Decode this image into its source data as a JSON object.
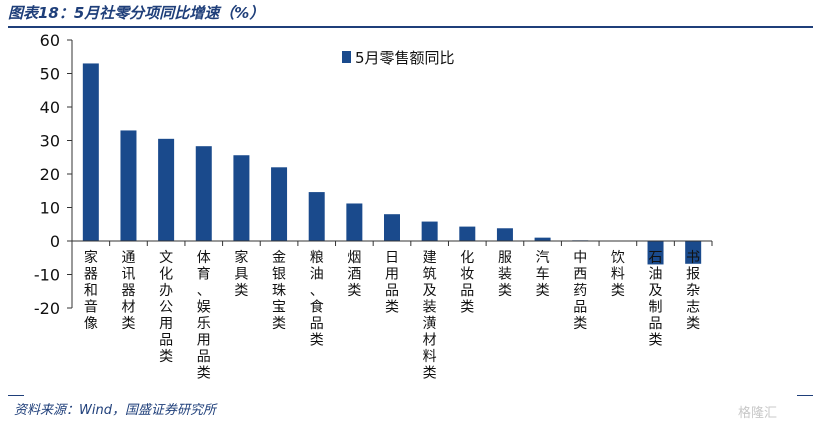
{
  "figure": {
    "title": "图表18：5月社零分项同比增速（%）",
    "source": "资料来源：Wind，国盛证券研究所",
    "watermark": "格隆汇"
  },
  "colors": {
    "bar": "#1a4a8c",
    "title": "#1f3f7a",
    "axis": "#333333"
  },
  "chart_data": {
    "type": "bar",
    "title": "",
    "xlabel": "",
    "ylabel": "",
    "ylim": [
      -20,
      60
    ],
    "yticks": [
      -20,
      -10,
      0,
      10,
      20,
      30,
      40,
      50,
      60
    ],
    "grid": false,
    "legend_position": "top-center",
    "categories": [
      "家器和音像",
      "通讯器材类",
      "文化办公用品类",
      "体育、娱乐用品类",
      "家具类",
      "金银珠宝类",
      "粮油、食品类",
      "烟酒类",
      "日用品类",
      "建筑及装潢材料类",
      "化妆品类",
      "服装类",
      "汽车类",
      "中西药品类",
      "饮料类",
      "石油及制品类",
      "书报杂志类"
    ],
    "series": [
      {
        "name": "5月零售额同比",
        "values": [
          53,
          33,
          30.5,
          28.3,
          25.6,
          22,
          14.6,
          11.2,
          8,
          5.8,
          4.3,
          3.8,
          1,
          0.2,
          0,
          -7,
          -6.8
        ]
      }
    ]
  }
}
